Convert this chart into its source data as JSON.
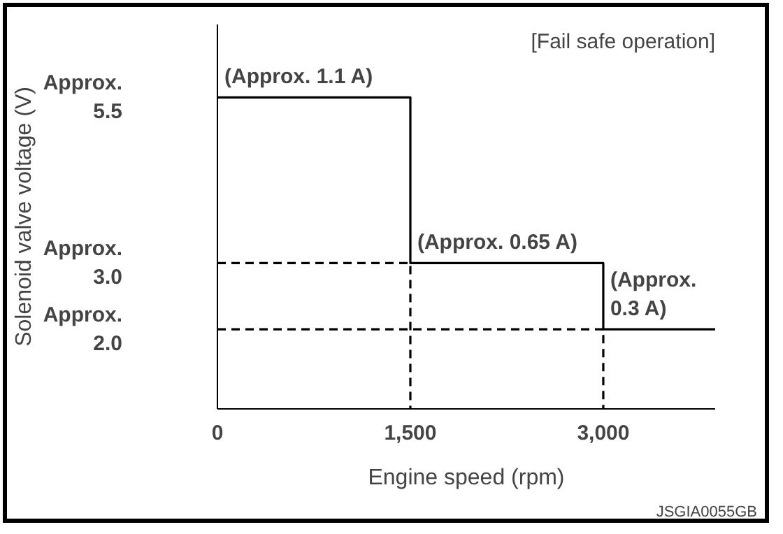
{
  "chart_data": {
    "type": "step",
    "xlabel": "Engine speed (rpm)",
    "ylabel": "Solenoid valve voltage (V)",
    "xlim": [
      0,
      3870
    ],
    "xticks": [
      {
        "value": 0,
        "label": "0"
      },
      {
        "value": 1500,
        "label": "1,500"
      },
      {
        "value": 3000,
        "label": "3,000"
      }
    ],
    "ylim": [
      0.8,
      6.6
    ],
    "yticks": [
      {
        "value": 2.0,
        "label": "Approx.\n2.0"
      },
      {
        "value": 3.0,
        "label": "Approx.\n3.0"
      },
      {
        "value": 5.5,
        "label": "Approx.\n5.5"
      }
    ],
    "grid": false,
    "line_style": "solid",
    "series": [
      {
        "color": "#000000",
        "x": [
          0,
          1500,
          3000,
          3870
        ],
        "values": [
          5.5,
          3.0,
          2.0,
          2.0
        ]
      },
      {
        "type": "line",
        "color": "#000000",
        "line_style": "dashed",
        "x": [
          0,
          1500,
          1500
        ],
        "values": [
          3.0,
          3.0,
          0.8
        ]
      },
      {
        "type": "line",
        "color": "#000000",
        "line_style": "dashed",
        "x": [
          0,
          3000,
          3000
        ],
        "values": [
          2.0,
          2.0,
          0.8
        ]
      }
    ],
    "annotations": [
      {
        "text": "(Approx. 1.1 A)",
        "x": 0,
        "y": 5.5
      },
      {
        "text": "(Approx. 0.65 A)",
        "x": 1500,
        "y": 3.0
      },
      {
        "text": "(Approx.\n0.3 A)",
        "x": 3000,
        "y": 2.0
      },
      "[Fail safe operation]",
      "JSGIA0055GB"
    ]
  }
}
